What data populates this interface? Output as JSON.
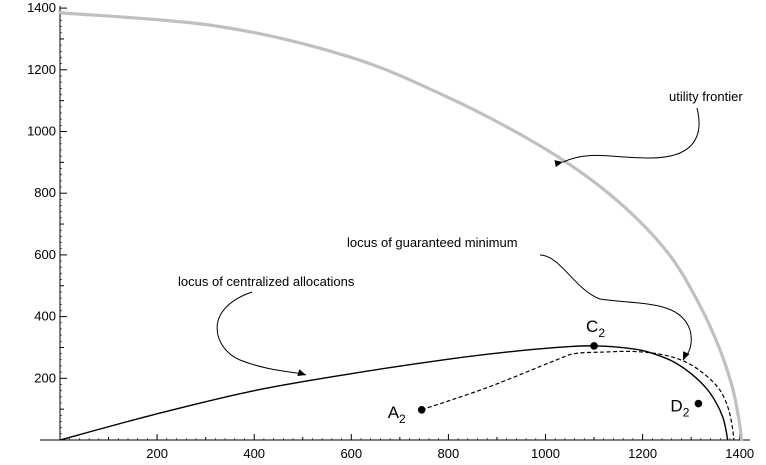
{
  "chart_data": {
    "type": "line",
    "title": "",
    "xlabel": "",
    "ylabel": "",
    "xlim": [
      0,
      1420
    ],
    "ylim": [
      0,
      1400
    ],
    "x_ticks": [
      200,
      400,
      600,
      800,
      1000,
      1200,
      1400
    ],
    "y_ticks": [
      200,
      400,
      600,
      800,
      1000,
      1200,
      1400
    ],
    "grid": false,
    "series": [
      {
        "style": "thick gray",
        "color": "#c0c0c0",
        "x": [
          0,
          330,
          600,
          800,
          960,
          1080,
          1180,
          1260,
          1320,
          1360,
          1385,
          1398,
          1404
        ],
        "y": [
          1385,
          1340,
          1240,
          1110,
          980,
          860,
          730,
          590,
          430,
          290,
          170,
          70,
          0
        ]
      },
      {
        "style": "solid",
        "color": "#000000",
        "x": [
          0,
          200,
          400,
          600,
          800,
          950,
          1050,
          1100,
          1150,
          1200,
          1240,
          1270,
          1300,
          1330,
          1350,
          1365,
          1372,
          1375
        ],
        "y": [
          0,
          85,
          160,
          215,
          262,
          290,
          303,
          305,
          301,
          290,
          270,
          248,
          215,
          170,
          125,
          75,
          30,
          0
        ]
      },
      {
        "style": "dashed",
        "color": "#000000",
        "x": [
          745,
          880,
          1020,
          1060,
          1120,
          1180,
          1240,
          1290,
          1330,
          1360,
          1377,
          1385,
          1388
        ],
        "y": [
          98,
          170,
          258,
          280,
          285,
          287,
          277,
          252,
          210,
          160,
          100,
          40,
          0
        ]
      }
    ],
    "points": [
      {
        "name": "A",
        "sub": "2",
        "x": 745,
        "y": 98
      },
      {
        "name": "C",
        "sub": "2",
        "x": 1100,
        "y": 305
      },
      {
        "name": "D",
        "sub": "2",
        "x": 1315,
        "y": 118
      }
    ],
    "annotations": [
      {
        "text": "utility frontier",
        "x": 1230,
        "y": 1130
      },
      {
        "text": "locus of guaranteed minimum",
        "x": 930,
        "y": 630
      },
      {
        "text": "locus of centralized allocations",
        "x": 385,
        "y": 510
      }
    ]
  }
}
